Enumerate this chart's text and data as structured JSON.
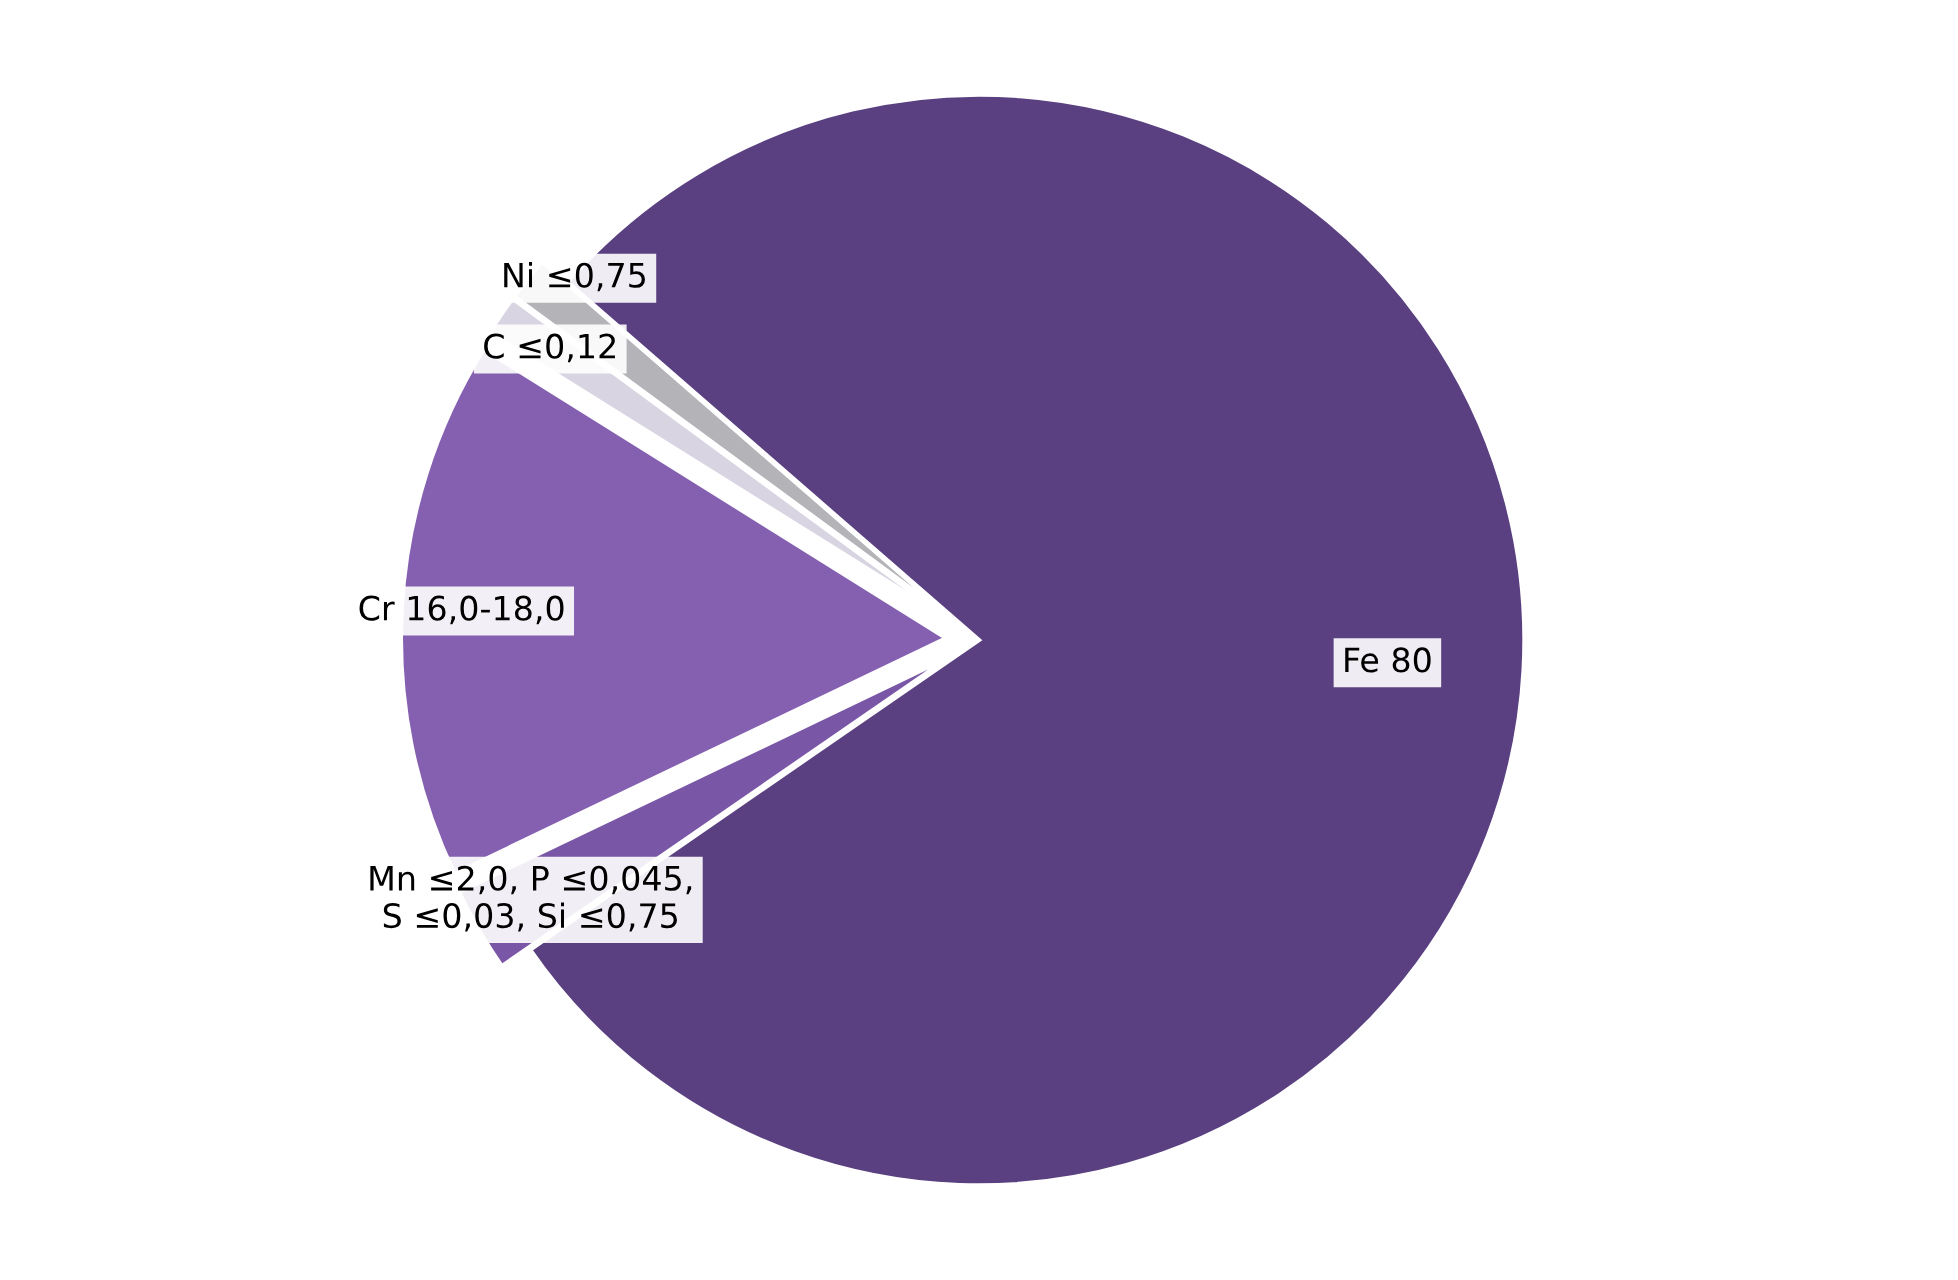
{
  "chart_data": {
    "type": "pie",
    "categories": [
      "Fe 80",
      "Mn ≤2,0, P ≤0,045,\nS ≤0,03, Si ≤0,75",
      "Cr 16,0-18,0",
      "C ≤0,12",
      "Ni ≤0,75"
    ],
    "values": [
      79,
      2.5,
      16,
      1.2,
      1.3
    ],
    "colors": [
      "#5a4080",
      "#7a56a6",
      "#8560b0",
      "#d9d4e2",
      "#b4b4b8"
    ]
  }
}
